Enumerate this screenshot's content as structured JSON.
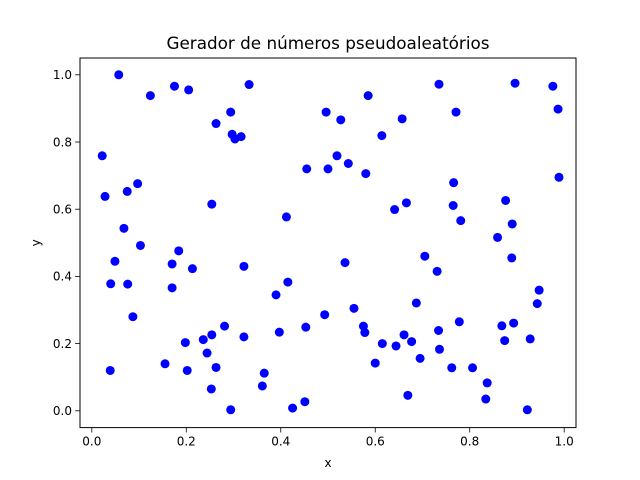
{
  "chart_data": {
    "type": "scatter",
    "title": "Gerador de números pseudoaleatórios",
    "xlabel": "x",
    "ylabel": "y",
    "xlim": [
      -0.025,
      1.025
    ],
    "ylim": [
      -0.05,
      1.05
    ],
    "xticks": [
      0.0,
      0.2,
      0.4,
      0.6,
      0.8,
      1.0
    ],
    "yticks": [
      0.0,
      0.2,
      0.4,
      0.6,
      0.8,
      1.0
    ],
    "xtick_labels": [
      "0.0",
      "0.2",
      "0.4",
      "0.6",
      "0.8",
      "1.0"
    ],
    "ytick_labels": [
      "0.0",
      "0.2",
      "0.4",
      "0.6",
      "0.8",
      "1.0"
    ],
    "grid": false,
    "marker_color": "#0000ff",
    "points": [
      [
        0.057,
        1.0
      ],
      [
        0.175,
        0.966
      ],
      [
        0.205,
        0.955
      ],
      [
        0.124,
        0.938
      ],
      [
        0.333,
        0.971
      ],
      [
        0.735,
        0.972
      ],
      [
        0.896,
        0.975
      ],
      [
        0.976,
        0.966
      ],
      [
        0.987,
        0.898
      ],
      [
        0.585,
        0.938
      ],
      [
        0.771,
        0.889
      ],
      [
        0.496,
        0.889
      ],
      [
        0.294,
        0.889
      ],
      [
        0.263,
        0.855
      ],
      [
        0.527,
        0.866
      ],
      [
        0.657,
        0.869
      ],
      [
        0.297,
        0.823
      ],
      [
        0.303,
        0.809
      ],
      [
        0.316,
        0.816
      ],
      [
        0.614,
        0.819
      ],
      [
        0.022,
        0.759
      ],
      [
        0.519,
        0.759
      ],
      [
        0.543,
        0.736
      ],
      [
        0.455,
        0.72
      ],
      [
        0.5,
        0.72
      ],
      [
        0.58,
        0.706
      ],
      [
        0.989,
        0.695
      ],
      [
        0.097,
        0.676
      ],
      [
        0.766,
        0.679
      ],
      [
        0.075,
        0.653
      ],
      [
        0.028,
        0.638
      ],
      [
        0.876,
        0.626
      ],
      [
        0.254,
        0.615
      ],
      [
        0.666,
        0.619
      ],
      [
        0.765,
        0.611
      ],
      [
        0.641,
        0.599
      ],
      [
        0.412,
        0.577
      ],
      [
        0.781,
        0.566
      ],
      [
        0.89,
        0.556
      ],
      [
        0.068,
        0.543
      ],
      [
        0.859,
        0.516
      ],
      [
        0.103,
        0.492
      ],
      [
        0.184,
        0.476
      ],
      [
        0.705,
        0.46
      ],
      [
        0.889,
        0.455
      ],
      [
        0.049,
        0.445
      ],
      [
        0.17,
        0.437
      ],
      [
        0.536,
        0.441
      ],
      [
        0.213,
        0.423
      ],
      [
        0.322,
        0.43
      ],
      [
        0.731,
        0.415
      ],
      [
        0.415,
        0.383
      ],
      [
        0.04,
        0.378
      ],
      [
        0.076,
        0.377
      ],
      [
        0.17,
        0.366
      ],
      [
        0.947,
        0.359
      ],
      [
        0.39,
        0.345
      ],
      [
        0.687,
        0.321
      ],
      [
        0.943,
        0.319
      ],
      [
        0.555,
        0.305
      ],
      [
        0.087,
        0.28
      ],
      [
        0.493,
        0.286
      ],
      [
        0.778,
        0.265
      ],
      [
        0.893,
        0.261
      ],
      [
        0.868,
        0.253
      ],
      [
        0.453,
        0.249
      ],
      [
        0.575,
        0.252
      ],
      [
        0.281,
        0.252
      ],
      [
        0.734,
        0.239
      ],
      [
        0.578,
        0.233
      ],
      [
        0.397,
        0.234
      ],
      [
        0.661,
        0.226
      ],
      [
        0.254,
        0.226
      ],
      [
        0.322,
        0.22
      ],
      [
        0.928,
        0.214
      ],
      [
        0.874,
        0.209
      ],
      [
        0.236,
        0.212
      ],
      [
        0.677,
        0.206
      ],
      [
        0.198,
        0.203
      ],
      [
        0.615,
        0.2
      ],
      [
        0.644,
        0.193
      ],
      [
        0.736,
        0.183
      ],
      [
        0.244,
        0.172
      ],
      [
        0.695,
        0.156
      ],
      [
        0.155,
        0.14
      ],
      [
        0.6,
        0.142
      ],
      [
        0.762,
        0.128
      ],
      [
        0.806,
        0.128
      ],
      [
        0.263,
        0.129
      ],
      [
        0.202,
        0.12
      ],
      [
        0.039,
        0.12
      ],
      [
        0.365,
        0.112
      ],
      [
        0.837,
        0.083
      ],
      [
        0.361,
        0.074
      ],
      [
        0.253,
        0.065
      ],
      [
        0.669,
        0.046
      ],
      [
        0.834,
        0.035
      ],
      [
        0.451,
        0.027
      ],
      [
        0.425,
        0.008
      ],
      [
        0.294,
        0.003
      ],
      [
        0.922,
        0.003
      ]
    ]
  }
}
